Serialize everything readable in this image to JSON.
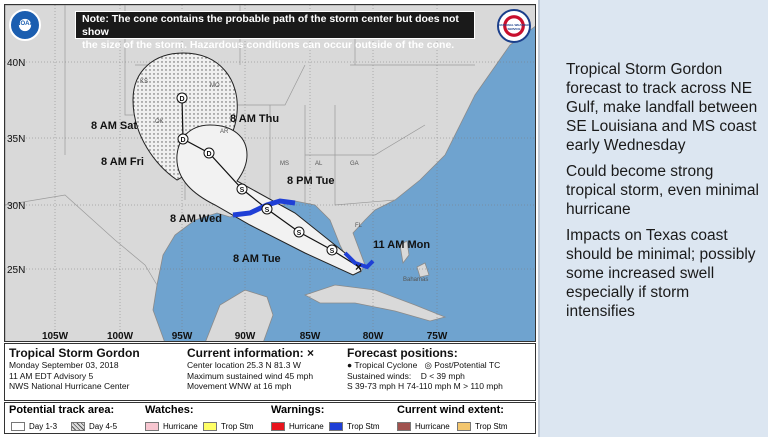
{
  "note": {
    "line1": "Note: The cone contains the probable path of the storm center but does not show",
    "line2": "the size of the storm. Hazardous conditions can occur outside of the cone."
  },
  "logos": {
    "left_text": "NOAA",
    "right_text": "NATIONAL WEATHER SERVICE"
  },
  "lat_labels": [
    "40N",
    "35N",
    "30N",
    "25N"
  ],
  "lon_labels": [
    "105W",
    "100W",
    "95W",
    "90W",
    "85W",
    "80W",
    "75W"
  ],
  "state_labels": [
    "KS",
    "MO",
    "OK",
    "AR",
    "MS",
    "AL",
    "GA",
    "FL"
  ],
  "place_labels": [
    "Bahamas"
  ],
  "forecast_points": [
    {
      "label": "11 AM Mon",
      "code": "S"
    },
    {
      "label": "8 AM Tue",
      "code": "S"
    },
    {
      "label": "8 PM Tue",
      "code": "S"
    },
    {
      "label": "8 AM Wed",
      "code": "S"
    },
    {
      "label": "8 AM Thu",
      "code": "D"
    },
    {
      "label": "8 AM Fri",
      "code": "D"
    },
    {
      "label": "8 AM Sat",
      "code": "D"
    }
  ],
  "info": {
    "storm_name": "Tropical Storm Gordon",
    "date": "Monday September 03, 2018",
    "advisory": "11 AM EDT Advisory 5",
    "center": "NWS National Hurricane Center",
    "current_title": "Current information:",
    "current_mark": "×",
    "location": "Center location 25.3 N 81.3 W",
    "winds": "Maximum sustained wind 45 mph",
    "movement": "Movement WNW at 16 mph",
    "forecast_title": "Forecast positions:",
    "fp_tc": "Tropical Cyclone",
    "fp_post": "Post/Potential TC",
    "fp_winds_label": "Sustained winds:",
    "fp_d": "D < 39 mph",
    "fp_line": "S 39-73 mph  H 74-110 mph  M > 110 mph"
  },
  "legend": {
    "track_title": "Potential track area:",
    "day13": "Day 1-3",
    "day45": "Day 4-5",
    "watches_title": "Watches:",
    "warnings_title": "Warnings:",
    "wind_title": "Current wind extent:",
    "hurricane": "Hurricane",
    "trop_stm": "Trop Stm"
  },
  "colors": {
    "ocean": "#6fa3cf",
    "land": "#d9d9d9",
    "cone": "#f2f2f2",
    "ts_warning": "#1f3fd6",
    "hurricane_watch": "#f7c6d0",
    "ts_watch": "#ffff66",
    "hurricane_warning": "#e8141d",
    "hurricane_wind": "#a0524e",
    "ts_wind": "#f3c66e"
  },
  "bullets": [
    "Tropical Storm Gordon forecast to track across NE Gulf, make landfall between SE Louisiana and MS coast early Wednesday",
    "Could become strong tropical storm, even minimal hurricane",
    "Impacts on Texas coast should be minimal; possibly some increased swell especially if storm intensifies"
  ]
}
